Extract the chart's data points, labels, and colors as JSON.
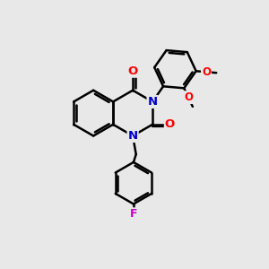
{
  "background_color": "#e8e8e8",
  "bond_color": "#000000",
  "bond_width": 1.8,
  "atom_colors": {
    "O": "#ff0000",
    "N": "#0000cc",
    "F": "#cc00cc",
    "C": "#000000"
  },
  "font_size": 9.5,
  "fig_size": [
    3.0,
    3.0
  ],
  "dpi": 100
}
